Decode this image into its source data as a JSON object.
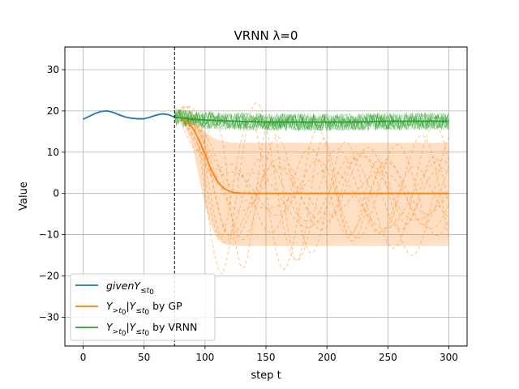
{
  "chart_data": {
    "type": "line",
    "title": "VRNN λ=0",
    "xlabel": "step t",
    "ylabel": "Value",
    "xlim": [
      -15,
      315
    ],
    "ylim": [
      -37,
      35.5
    ],
    "xticks": [
      0,
      50,
      100,
      150,
      200,
      250,
      300
    ],
    "yticks": [
      -30,
      -20,
      -10,
      0,
      10,
      20,
      30
    ],
    "grid": true,
    "legend_position": "lower-left",
    "vline": {
      "x": 75,
      "style": "dashed",
      "color": "#000000"
    },
    "series": [
      {
        "name": "given Y≤t0",
        "color": "#1f77b4",
        "x": [
          0,
          5,
          10,
          15,
          20,
          25,
          30,
          35,
          40,
          45,
          50,
          55,
          60,
          65,
          70,
          75
        ],
        "y": [
          18.0,
          18.7,
          19.4,
          19.9,
          20.0,
          19.6,
          19.0,
          18.5,
          18.2,
          18.1,
          18.1,
          18.5,
          19.0,
          19.3,
          19.1,
          18.5
        ]
      },
      {
        "name": "Y>t0|Y≤t0 by GP",
        "color": "#ff7f0e",
        "x": [
          75,
          80,
          85,
          90,
          95,
          100,
          105,
          110,
          115,
          120,
          125,
          130,
          140,
          150,
          175,
          200,
          250,
          300
        ],
        "y": [
          18.5,
          18.3,
          17.5,
          15.8,
          13.0,
          9.5,
          5.8,
          3.0,
          1.3,
          0.5,
          0.15,
          0.05,
          0,
          0,
          0,
          0,
          0,
          0
        ],
        "band_upper": [
          18.5,
          18.6,
          18.6,
          18.0,
          16.5,
          15.0,
          13.8,
          13.0,
          12.6,
          12.4,
          12.3,
          12.3,
          12.3,
          12.3,
          12.3,
          12.3,
          12.3,
          12.3
        ],
        "band_lower": [
          18.5,
          18.0,
          15.5,
          11.0,
          4.0,
          -3.0,
          -8.0,
          -11.0,
          -12.2,
          -12.6,
          -12.7,
          -12.7,
          -12.7,
          -12.7,
          -12.7,
          -12.7,
          -12.7,
          -12.7
        ]
      },
      {
        "name": "Y>t0|Y≤t0 by VRNN",
        "color": "#2ca02c",
        "x": [
          75,
          90,
          100,
          125,
          150,
          175,
          200,
          225,
          250,
          275,
          300
        ],
        "y": [
          18.5,
          18.0,
          17.8,
          17.5,
          17.3,
          17.3,
          17.3,
          17.3,
          17.5,
          17.5,
          17.5
        ]
      }
    ]
  },
  "legend": {
    "given_prefix": "given",
    "y_symbol": "Y",
    "le_sub": "≤",
    "gt_sub": ">",
    "t0_sub": "t",
    "t0_subsub": "0",
    "gp_suffix": "by GP",
    "vrnn_suffix": "by VRNN"
  },
  "colors": {
    "blue": "#1f77b4",
    "orange": "#ff7f0e",
    "green": "#2ca02c",
    "grid": "#b0b0b0"
  }
}
